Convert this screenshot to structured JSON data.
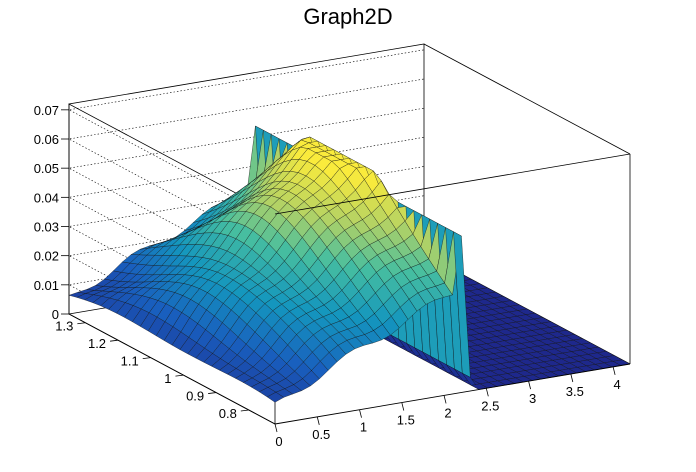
{
  "title": "Graph2D",
  "chart_data": {
    "type": "surface",
    "title": "Graph2D",
    "xlabel": "",
    "ylabel": "",
    "zlabel": "",
    "x_ticks": [
      "0",
      "0.5",
      "1",
      "1.5",
      "2",
      "2.5",
      "3",
      "3.5",
      "4"
    ],
    "y_ticks": [
      "0.8",
      "0.9",
      "1",
      "1.1",
      "1.2",
      "1.3"
    ],
    "z_ticks": [
      "0",
      "0.01",
      "0.02",
      "0.03",
      "0.04",
      "0.05",
      "0.06",
      "0.07"
    ],
    "xlim": [
      0,
      4.2
    ],
    "ylim": [
      0.72,
      1.35
    ],
    "zlim": [
      0,
      0.072
    ],
    "grid": true,
    "colormap": "viridis-like (blue to yellow)",
    "ridge": {
      "x_max": 2.2,
      "z_max": 0.059,
      "note": "surface rises linearly with x and drops to 0 beyond x≈2.2"
    }
  }
}
